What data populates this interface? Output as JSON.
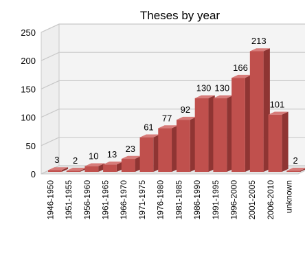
{
  "chart_data": {
    "type": "bar",
    "title": "Theses by year",
    "xlabel": "",
    "ylabel": "",
    "ylim": [
      0,
      250
    ],
    "yticks": [
      "0",
      "50",
      "100",
      "150",
      "200",
      "250"
    ],
    "grid": true,
    "legend": "none",
    "categories": [
      "1946-1950",
      "1951-1955",
      "1956-1960",
      "1961-1965",
      "1966-1970",
      "1971-1975",
      "1976-1980",
      "1981-1985",
      "1986-1990",
      "1991-1995",
      "1996-2000",
      "2001-2005",
      "2006-2010",
      "unknown"
    ],
    "values": [
      3,
      2,
      10,
      13,
      23,
      61,
      77,
      92,
      130,
      130,
      166,
      213,
      101,
      2
    ],
    "data_labels": [
      "3",
      "2",
      "10",
      "13",
      "23",
      "61",
      "77",
      "92",
      "130",
      "130",
      "166",
      "213",
      "101",
      "2"
    ],
    "colors": {
      "bar_front": "#c0504d",
      "bar_side": "#8f3533",
      "bar_top": "#d77c7a",
      "grid": "#c8c8c8",
      "wall": "#f4f4f4"
    }
  }
}
